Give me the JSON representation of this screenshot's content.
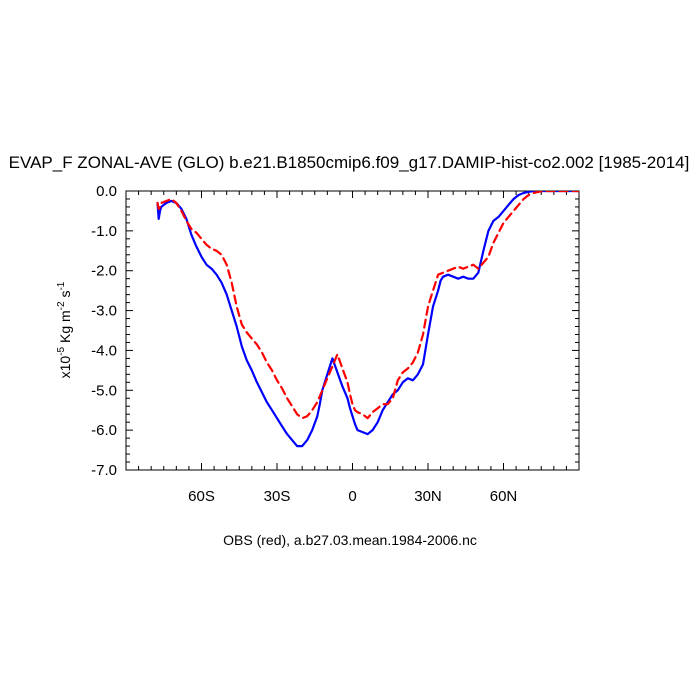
{
  "chart_data": {
    "type": "line",
    "title": "EVAP_F ZONAL-AVE (GLO) b.e21.B1850cmip6.f09_g17.DAMIP-hist-co2.002 [1985-2014]",
    "ylabel": {
      "prefix": "x10",
      "exp1": "-5",
      "mid": " Kg m",
      "exp2": "-2",
      "mid2": " s",
      "exp3": "-1"
    },
    "footer": "OBS (red), a.b27.03.mean.1984-2006.nc",
    "xlim": [
      -90,
      90
    ],
    "ylim": [
      -7.0,
      0.0
    ],
    "x_ticks": [
      {
        "value": -60,
        "label": "60S"
      },
      {
        "value": -30,
        "label": "30S"
      },
      {
        "value": 0,
        "label": "0"
      },
      {
        "value": 30,
        "label": "30N"
      },
      {
        "value": 60,
        "label": "60N"
      }
    ],
    "y_ticks": [
      {
        "value": 0.0,
        "label": "0.0"
      },
      {
        "value": -1.0,
        "label": "-1.0"
      },
      {
        "value": -2.0,
        "label": "-2.0"
      },
      {
        "value": -3.0,
        "label": "-3.0"
      },
      {
        "value": -4.0,
        "label": "-4.0"
      },
      {
        "value": -5.0,
        "label": "-5.0"
      },
      {
        "value": -6.0,
        "label": "-6.0"
      },
      {
        "value": -7.0,
        "label": "-7.0"
      }
    ],
    "series": [
      {
        "color": "#0000ff",
        "style": "solid",
        "x": [
          -77.5,
          -77,
          -76.5,
          -76,
          -74,
          -72,
          -70,
          -68,
          -66,
          -64,
          -62,
          -60,
          -58,
          -56,
          -54,
          -52,
          -50,
          -48,
          -46,
          -44,
          -42,
          -40,
          -38,
          -36,
          -34,
          -32,
          -30,
          -28,
          -26,
          -24,
          -22,
          -20,
          -18,
          -16,
          -14,
          -13,
          -12,
          -10,
          -8,
          -6,
          -4,
          -2,
          -1,
          0,
          1,
          2,
          4,
          6,
          8,
          10,
          12,
          14,
          16,
          18,
          20,
          22,
          24,
          26,
          28,
          30,
          32,
          34,
          35,
          36,
          38,
          40,
          42,
          44,
          46,
          48,
          50,
          52,
          54,
          56,
          58,
          60,
          62,
          64,
          66,
          68,
          70,
          72,
          74,
          76,
          78,
          80,
          82,
          84,
          86,
          88,
          90
        ],
        "y": [
          -0.3,
          -0.7,
          -0.5,
          -0.4,
          -0.3,
          -0.25,
          -0.3,
          -0.45,
          -0.7,
          -1.1,
          -1.4,
          -1.65,
          -1.85,
          -1.95,
          -2.1,
          -2.3,
          -2.6,
          -3.0,
          -3.4,
          -3.9,
          -4.25,
          -4.5,
          -4.8,
          -5.05,
          -5.3,
          -5.5,
          -5.7,
          -5.9,
          -6.1,
          -6.25,
          -6.4,
          -6.4,
          -6.25,
          -6.0,
          -5.65,
          -5.35,
          -5.0,
          -4.6,
          -4.2,
          -4.55,
          -4.9,
          -5.2,
          -5.45,
          -5.65,
          -5.85,
          -6.0,
          -6.05,
          -6.1,
          -6.0,
          -5.8,
          -5.5,
          -5.3,
          -5.1,
          -5.0,
          -4.8,
          -4.7,
          -4.75,
          -4.6,
          -4.35,
          -3.6,
          -2.9,
          -2.5,
          -2.25,
          -2.15,
          -2.1,
          -2.15,
          -2.2,
          -2.15,
          -2.2,
          -2.2,
          -2.05,
          -1.5,
          -1.0,
          -0.75,
          -0.65,
          -0.5,
          -0.35,
          -0.2,
          -0.1,
          -0.05,
          -0.02,
          0.0,
          0.0,
          0.0,
          0.0,
          0.0,
          0.0,
          0.0,
          0.0,
          0.0,
          0.0
        ]
      },
      {
        "color": "#ff0000",
        "style": "dashed",
        "x": [
          -77.5,
          -77,
          -76.5,
          -76,
          -74,
          -72,
          -70,
          -68,
          -66,
          -64,
          -62,
          -60,
          -58,
          -56,
          -54,
          -52,
          -50,
          -48,
          -46,
          -44,
          -42,
          -40,
          -38,
          -36,
          -34,
          -32,
          -30,
          -28,
          -26,
          -24,
          -22,
          -20,
          -18,
          -16,
          -14,
          -12,
          -10,
          -8,
          -6,
          -4,
          -2,
          -1,
          0,
          1,
          2,
          4,
          6,
          8,
          10,
          12,
          14,
          16,
          18,
          20,
          22,
          24,
          26,
          28,
          30,
          32,
          34,
          36,
          38,
          40,
          42,
          44,
          46,
          48,
          50,
          52,
          54,
          56,
          58,
          60,
          62,
          64,
          66,
          68,
          70,
          72,
          74,
          76,
          78,
          80,
          82,
          84,
          86,
          88,
          90
        ],
        "y": [
          -0.3,
          -0.45,
          -0.4,
          -0.3,
          -0.25,
          -0.2,
          -0.3,
          -0.5,
          -0.75,
          -0.95,
          -1.05,
          -1.2,
          -1.35,
          -1.45,
          -1.5,
          -1.6,
          -1.85,
          -2.3,
          -2.9,
          -3.35,
          -3.55,
          -3.7,
          -3.85,
          -4.05,
          -4.3,
          -4.5,
          -4.75,
          -4.95,
          -5.2,
          -5.4,
          -5.6,
          -5.7,
          -5.65,
          -5.5,
          -5.3,
          -5.0,
          -4.7,
          -4.4,
          -4.1,
          -4.45,
          -4.8,
          -5.1,
          -5.35,
          -5.5,
          -5.55,
          -5.6,
          -5.7,
          -5.55,
          -5.45,
          -5.35,
          -5.35,
          -5.2,
          -4.75,
          -4.55,
          -4.45,
          -4.3,
          -4.05,
          -3.6,
          -2.9,
          -2.5,
          -2.1,
          -2.05,
          -2.0,
          -1.95,
          -1.9,
          -1.95,
          -1.9,
          -1.85,
          -1.95,
          -1.8,
          -1.65,
          -1.3,
          -1.05,
          -0.8,
          -0.65,
          -0.5,
          -0.35,
          -0.2,
          -0.1,
          -0.05,
          -0.02,
          0.0,
          0.0,
          0.0,
          0.0,
          0.0,
          0.0,
          0.0,
          0.0
        ]
      }
    ]
  }
}
